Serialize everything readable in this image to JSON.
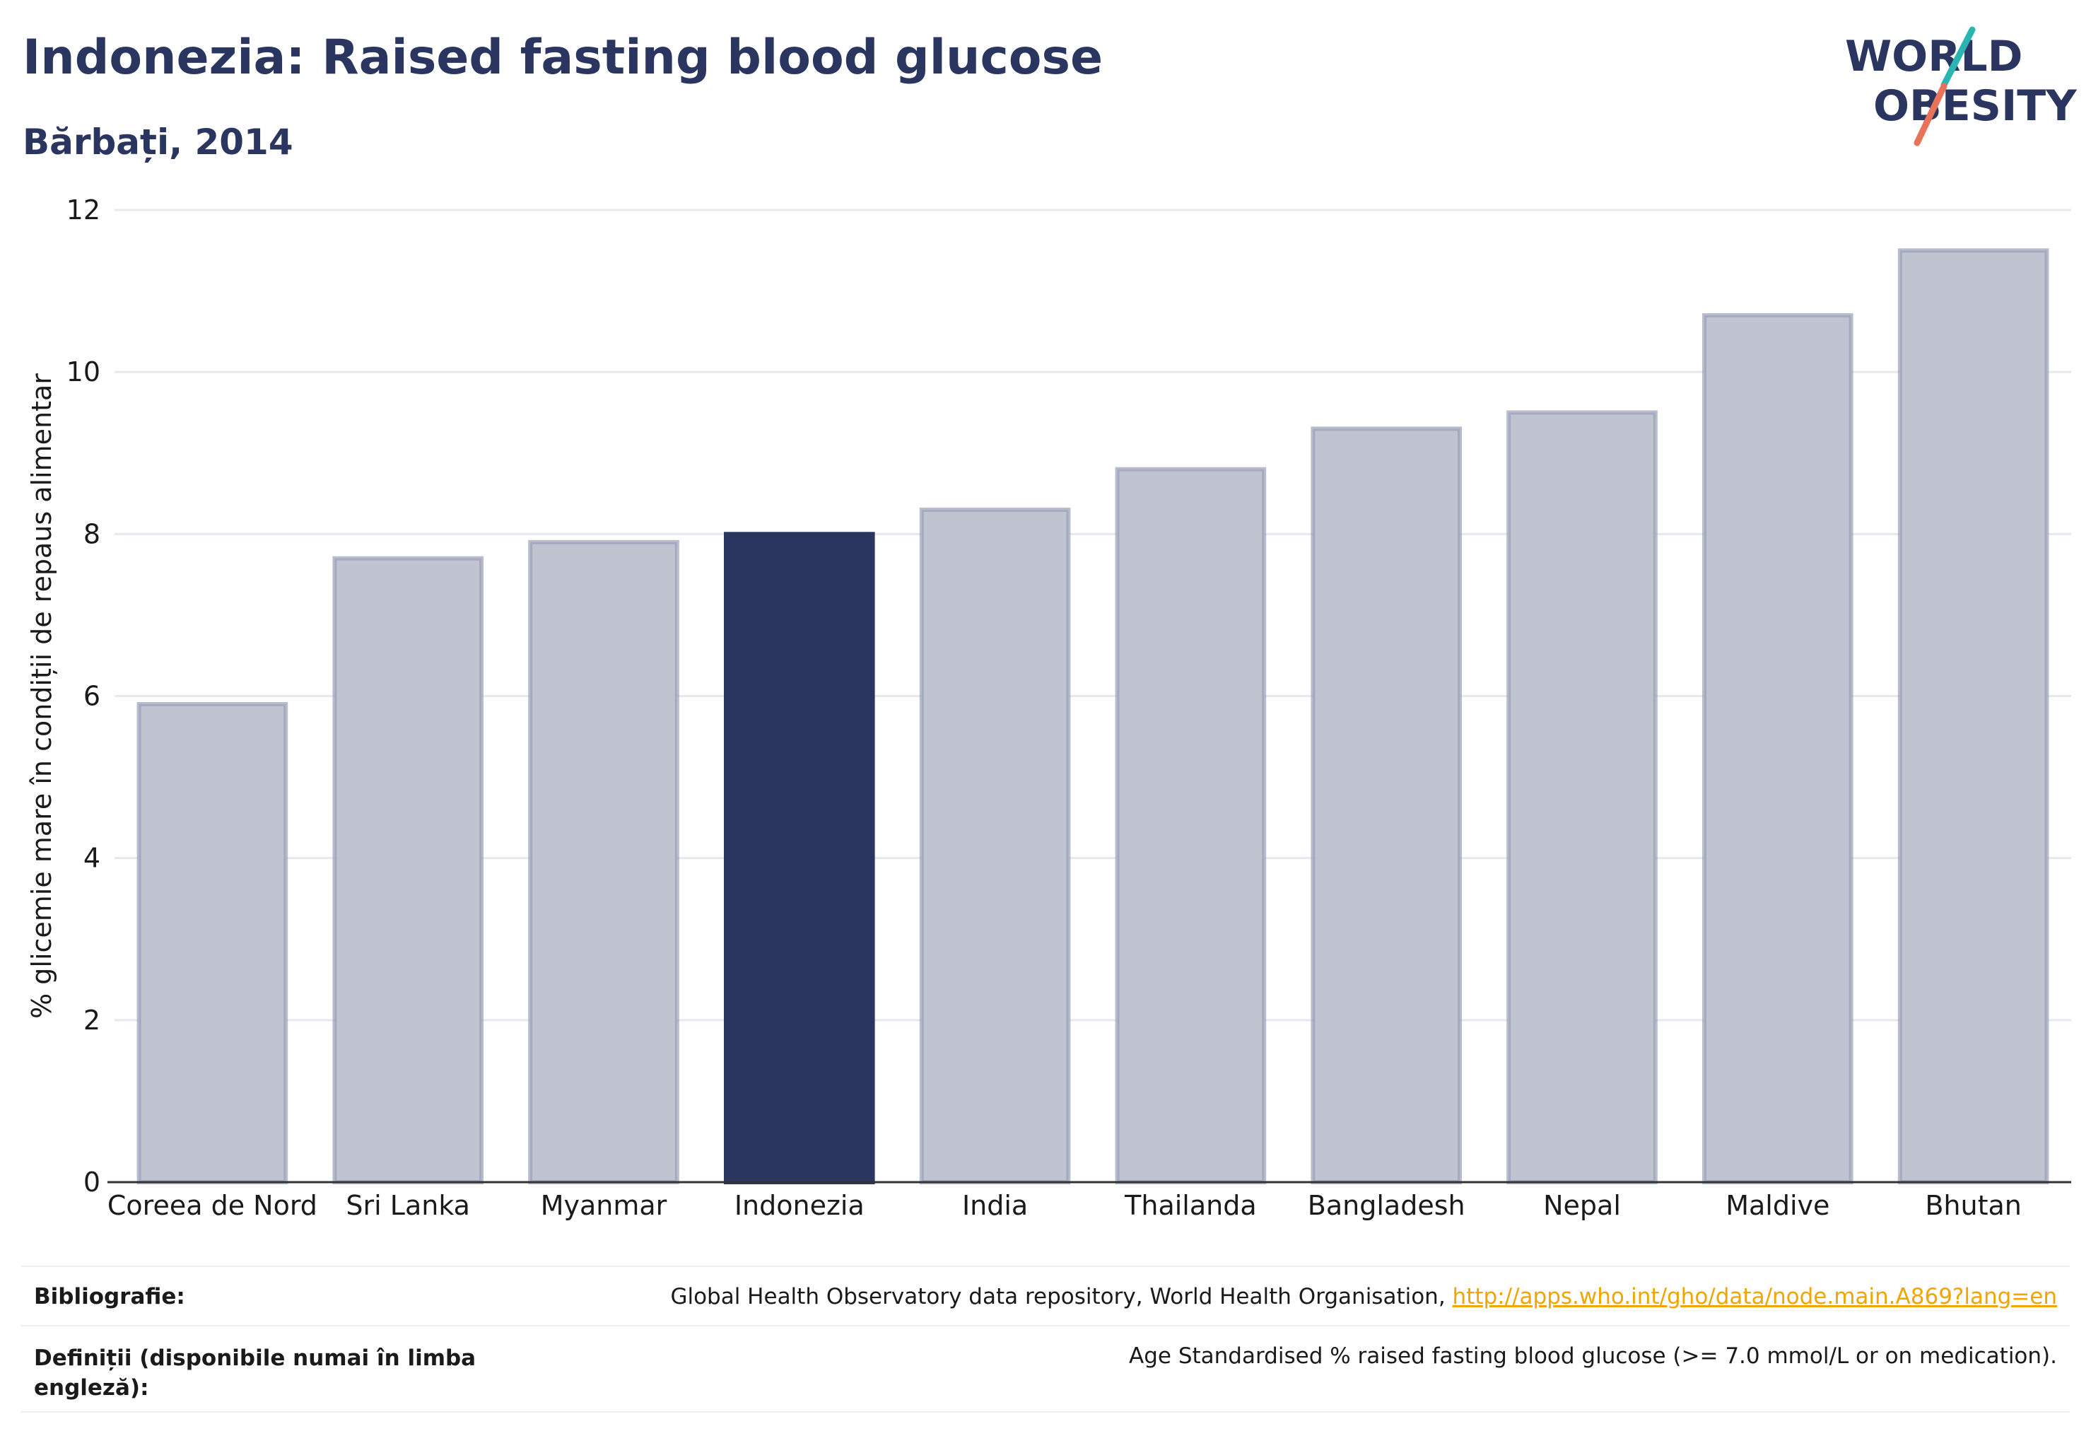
{
  "header": {
    "title": "Indonezia: Raised fasting blood glucose",
    "subtitle": "Bărbați, 2014"
  },
  "logo": {
    "line1": "WORLD",
    "line2": "OBESITY",
    "accent_teal": "#2bb5b0",
    "accent_coral": "#e8735a",
    "text_color": "#2a3560"
  },
  "chart_data": {
    "type": "bar",
    "categories": [
      "Coreea de Nord",
      "Sri Lanka",
      "Myanmar",
      "Indonezia",
      "India",
      "Thailanda",
      "Bangladesh",
      "Nepal",
      "Maldive",
      "Bhutan"
    ],
    "values": [
      5.9,
      7.7,
      7.9,
      8.0,
      8.3,
      8.8,
      9.3,
      9.5,
      10.7,
      11.5
    ],
    "highlight": "Indonezia",
    "ylabel": "% glicemie mare în condiții de repaus alimentar",
    "xlabel": "",
    "ylim": [
      0,
      12
    ],
    "yticks": [
      0,
      2,
      4,
      6,
      8,
      10,
      12
    ],
    "grid": true,
    "colors": {
      "bar": "#c0c3d0",
      "bar_border": "#9aa0b8",
      "highlight": "#2a3560",
      "grid": "#e6e8ee",
      "axis": "#333333"
    }
  },
  "footer": {
    "bibliography_label": "Bibliografie:",
    "bibliography_text": "Global Health Observatory data repository, World Health Organisation, ",
    "bibliography_link": "http://apps.who.int/gho/data/node.main.A869?lang=en",
    "definitions_label": "Definiții (disponibile numai în limba engleză):",
    "definitions_text": "Age Standardised % raised fasting blood glucose (>= 7.0 mmol/L or on medication)."
  }
}
